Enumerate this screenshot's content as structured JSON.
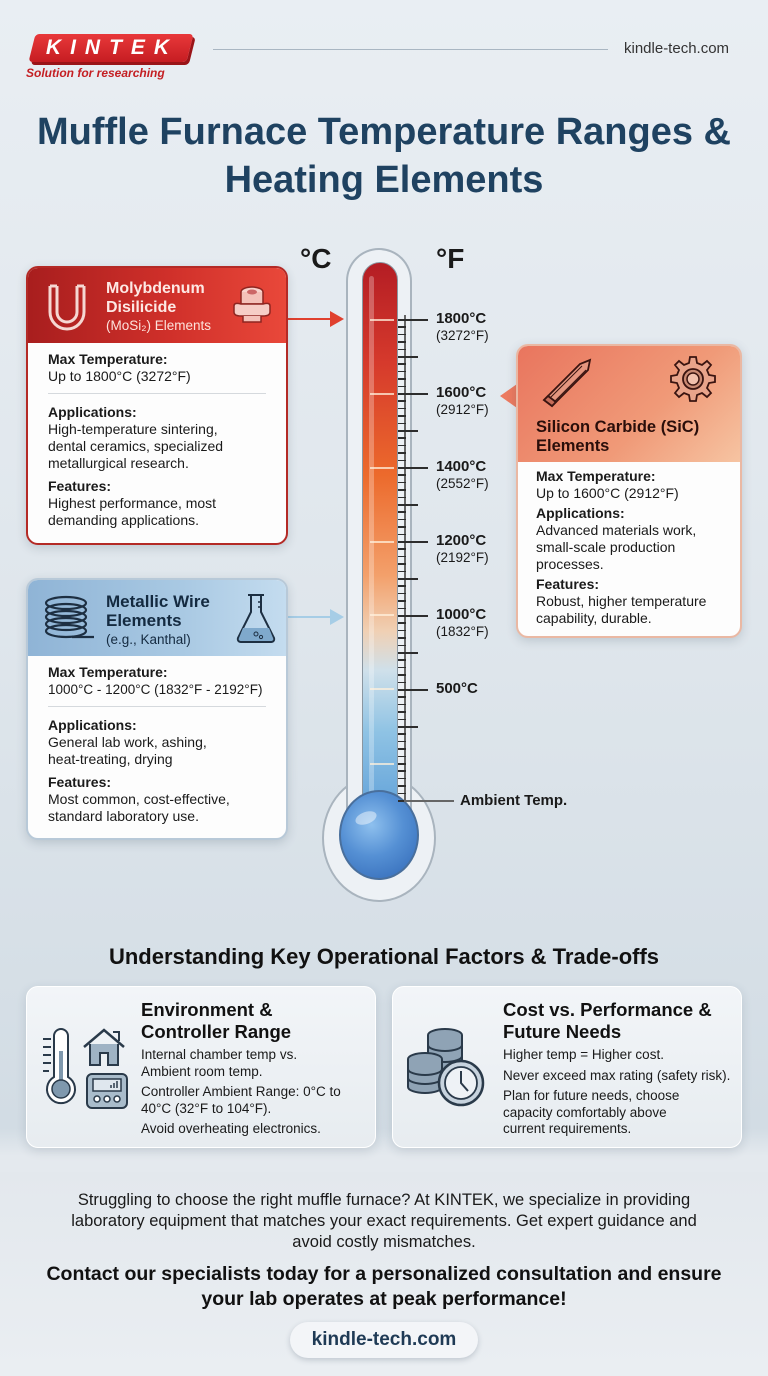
{
  "header": {
    "logo_text": "KINTEK",
    "tagline": "Solution for researching",
    "url": "kindle-tech.com",
    "brand_color": "#c61d22"
  },
  "title": "Muffle Furnace Temperature Ranges & Heating Elements",
  "thermometer": {
    "unit_c": "°C",
    "unit_f": "°F",
    "labels": [
      {
        "c": "1800°C",
        "f": "(3272°F)"
      },
      {
        "c": "1600°C",
        "f": "(2912°F)"
      },
      {
        "c": "1400°C",
        "f": "(2552°F)"
      },
      {
        "c": "1200°C",
        "f": "(2192°F)"
      },
      {
        "c": "1000°C",
        "f": "(1832°F)"
      },
      {
        "c": "500°C",
        "f": ""
      }
    ],
    "ambient_label": "Ambient Temp."
  },
  "elements": {
    "mosi": {
      "title": "Molybdenum Disilicide",
      "subtitle": "(MoSi₂) Elements",
      "max_label": "Max Temperature:",
      "max_value": "Up to 1800°C (3272°F)",
      "apps_label": "Applications:",
      "apps_value": "High-temperature sintering, dental ceramics, specialized metallurgical research.",
      "features_label": "Features:",
      "features_value": "Highest performance, most demanding applications.",
      "color": "#c62a26"
    },
    "metal": {
      "title": "Metallic Wire Elements",
      "subtitle": "(e.g., Kanthal)",
      "max_label": "Max Temperature:",
      "max_value": "1000°C - 1200°C (1832°F - 2192°F)",
      "apps_label": "Applications:",
      "apps_value": "General lab work, ashing, heat-treating, drying",
      "features_label": "Features:",
      "features_value": "Most common, cost-effective, standard laboratory use.",
      "color": "#9dbfdd"
    },
    "sic": {
      "title": "Silicon Carbide (SiC) Elements",
      "max_label": "Max Temperature:",
      "max_value": "Up to 1600°C (2912°F)",
      "apps_label": "Applications:",
      "apps_value": "Advanced materials work, small-scale production processes.",
      "features_label": "Features:",
      "features_value": "Robust, higher temperature capability, durable.",
      "color": "#ee8a6c"
    }
  },
  "factors": {
    "section_title": "Understanding Key Operational Factors & Trade-offs",
    "env": {
      "title": "Environment & Controller Range",
      "lines": [
        "Internal chamber temp vs. Ambient room temp.",
        "Controller Ambient Range: 0°C to 40°C (32°F to 104°F).",
        "Avoid overheating electronics."
      ]
    },
    "cost": {
      "title": "Cost vs. Performance & Future Needs",
      "lines": [
        "Higher temp = Higher cost.",
        "Never exceed max rating (safety risk).",
        "Plan for future needs, choose capacity comfortably above current requirements."
      ]
    }
  },
  "cta": {
    "paragraph": "Struggling to choose the right muffle furnace? At KINTEK, we specialize in providing laboratory equipment that matches your exact requirements. Get expert guidance and avoid costly mismatches.",
    "strong": "Contact our specialists today for a personalized consultation and ensure your lab operates at peak performance!",
    "url": "kindle-tech.com"
  }
}
